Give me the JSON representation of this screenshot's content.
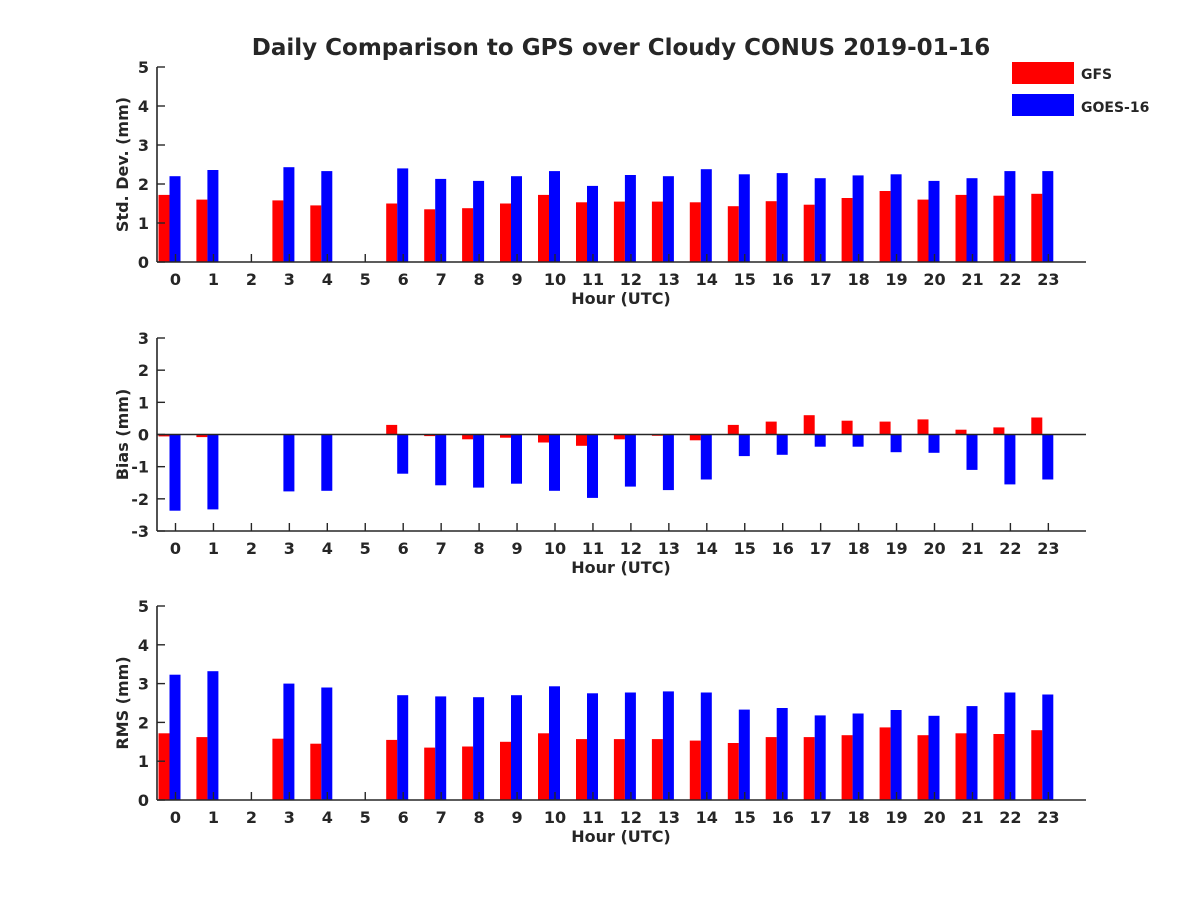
{
  "title": "Daily Comparison to GPS over Cloudy CONUS 2019-01-16",
  "colors": {
    "GFS": "#ff0000",
    "GOES-16": "#0000ff",
    "axis": "#262626"
  },
  "legend": {
    "placement": "top-right",
    "entries": [
      "GFS",
      "GOES-16"
    ]
  },
  "chart_data": [
    {
      "type": "bar",
      "title": "",
      "xlabel": "Hour (UTC)",
      "ylabel": "Std. Dev. (mm)",
      "ylim": [
        0,
        5
      ],
      "yticks": [
        0,
        1,
        2,
        3,
        4,
        5
      ],
      "categories": [
        "0",
        "1",
        "2",
        "3",
        "4",
        "5",
        "6",
        "7",
        "8",
        "9",
        "10",
        "11",
        "12",
        "13",
        "14",
        "15",
        "16",
        "17",
        "18",
        "19",
        "20",
        "21",
        "22",
        "23"
      ],
      "series": [
        {
          "name": "GFS",
          "values": [
            1.72,
            1.6,
            null,
            1.58,
            1.45,
            null,
            1.5,
            1.35,
            1.38,
            1.5,
            1.72,
            1.53,
            1.55,
            1.55,
            1.53,
            1.43,
            1.56,
            1.47,
            1.64,
            1.82,
            1.6,
            1.72,
            1.7,
            1.75
          ]
        },
        {
          "name": "GOES-16",
          "values": [
            2.2,
            2.36,
            null,
            2.43,
            2.33,
            null,
            2.4,
            2.13,
            2.08,
            2.2,
            2.33,
            1.95,
            2.23,
            2.2,
            2.38,
            2.25,
            2.28,
            2.15,
            2.22,
            2.25,
            2.08,
            2.15,
            2.33,
            2.33
          ]
        }
      ],
      "grid": false
    },
    {
      "type": "bar",
      "title": "",
      "xlabel": "Hour (UTC)",
      "ylabel": "Bias (mm)",
      "ylim": [
        -3,
        3
      ],
      "yticks": [
        -3,
        -2,
        -1,
        0,
        1,
        2,
        3
      ],
      "categories": [
        "0",
        "1",
        "2",
        "3",
        "4",
        "5",
        "6",
        "7",
        "8",
        "9",
        "10",
        "11",
        "12",
        "13",
        "14",
        "15",
        "16",
        "17",
        "18",
        "19",
        "20",
        "21",
        "22",
        "23"
      ],
      "series": [
        {
          "name": "GFS",
          "values": [
            -0.06,
            -0.08,
            null,
            0,
            0,
            null,
            0.3,
            -0.05,
            -0.15,
            -0.1,
            -0.25,
            -0.35,
            -0.15,
            -0.04,
            -0.18,
            0.3,
            0.4,
            0.6,
            0.43,
            0.4,
            0.47,
            0.15,
            0.22,
            0.53
          ]
        },
        {
          "name": "GOES-16",
          "values": [
            -2.37,
            -2.33,
            null,
            -1.77,
            -1.75,
            null,
            -1.22,
            -1.58,
            -1.65,
            -1.53,
            -1.75,
            -1.97,
            -1.62,
            -1.73,
            -1.4,
            -0.67,
            -0.63,
            -0.38,
            -0.38,
            -0.55,
            -0.57,
            -1.1,
            -1.55,
            -1.4
          ]
        }
      ],
      "grid": false
    },
    {
      "type": "bar",
      "title": "",
      "xlabel": "Hour (UTC)",
      "ylabel": "RMS (mm)",
      "ylim": [
        0,
        5
      ],
      "yticks": [
        0,
        1,
        2,
        3,
        4,
        5
      ],
      "categories": [
        "0",
        "1",
        "2",
        "3",
        "4",
        "5",
        "6",
        "7",
        "8",
        "9",
        "10",
        "11",
        "12",
        "13",
        "14",
        "15",
        "16",
        "17",
        "18",
        "19",
        "20",
        "21",
        "22",
        "23"
      ],
      "series": [
        {
          "name": "GFS",
          "values": [
            1.72,
            1.62,
            null,
            1.58,
            1.45,
            null,
            1.55,
            1.35,
            1.38,
            1.5,
            1.72,
            1.57,
            1.57,
            1.57,
            1.53,
            1.47,
            1.62,
            1.62,
            1.67,
            1.87,
            1.67,
            1.72,
            1.7,
            1.8
          ]
        },
        {
          "name": "GOES-16",
          "values": [
            3.23,
            3.32,
            null,
            3.0,
            2.9,
            null,
            2.7,
            2.67,
            2.65,
            2.7,
            2.93,
            2.75,
            2.77,
            2.8,
            2.77,
            2.33,
            2.37,
            2.18,
            2.23,
            2.32,
            2.17,
            2.42,
            2.77,
            2.72
          ]
        }
      ],
      "grid": false
    }
  ]
}
